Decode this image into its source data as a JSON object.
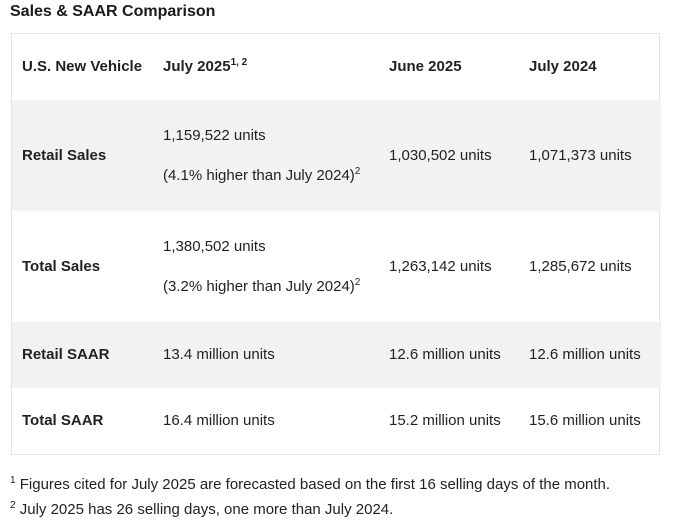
{
  "title": "Sales & SAAR Comparison",
  "table": {
    "headers": {
      "col1": "U.S. New Vehicle",
      "col2": "July 2025",
      "col2_sup": "1, 2",
      "col3": "June 2025",
      "col4": "July 2024"
    },
    "rows": [
      {
        "label": "Retail Sales",
        "july2025_value": "1,159,522 units",
        "july2025_note": "(4.1% higher than July 2024)",
        "july2025_note_sup": "2",
        "june2025": "1,030,502 units",
        "july2024": "1,071,373 units"
      },
      {
        "label": "Total Sales",
        "july2025_value": "1,380,502 units",
        "july2025_note": "(3.2% higher than July 2024)",
        "july2025_note_sup": "2",
        "june2025": "1,263,142 units",
        "july2024": "1,285,672 units"
      },
      {
        "label": "Retail SAAR",
        "july2025_value": "13.4 million units",
        "june2025": "12.6 million units",
        "july2024": "12.6 million units"
      },
      {
        "label": "Total SAAR",
        "july2025_value": "16.4 million units",
        "june2025": "15.2 million units",
        "july2024": "15.6 million units"
      }
    ]
  },
  "footnotes": [
    {
      "num": "1",
      "text": "Figures cited for July 2025 are forecasted based on the first 16 selling days of the month."
    },
    {
      "num": "2",
      "text": "July 2025 has 26 selling days, one more than July 2024."
    }
  ]
}
